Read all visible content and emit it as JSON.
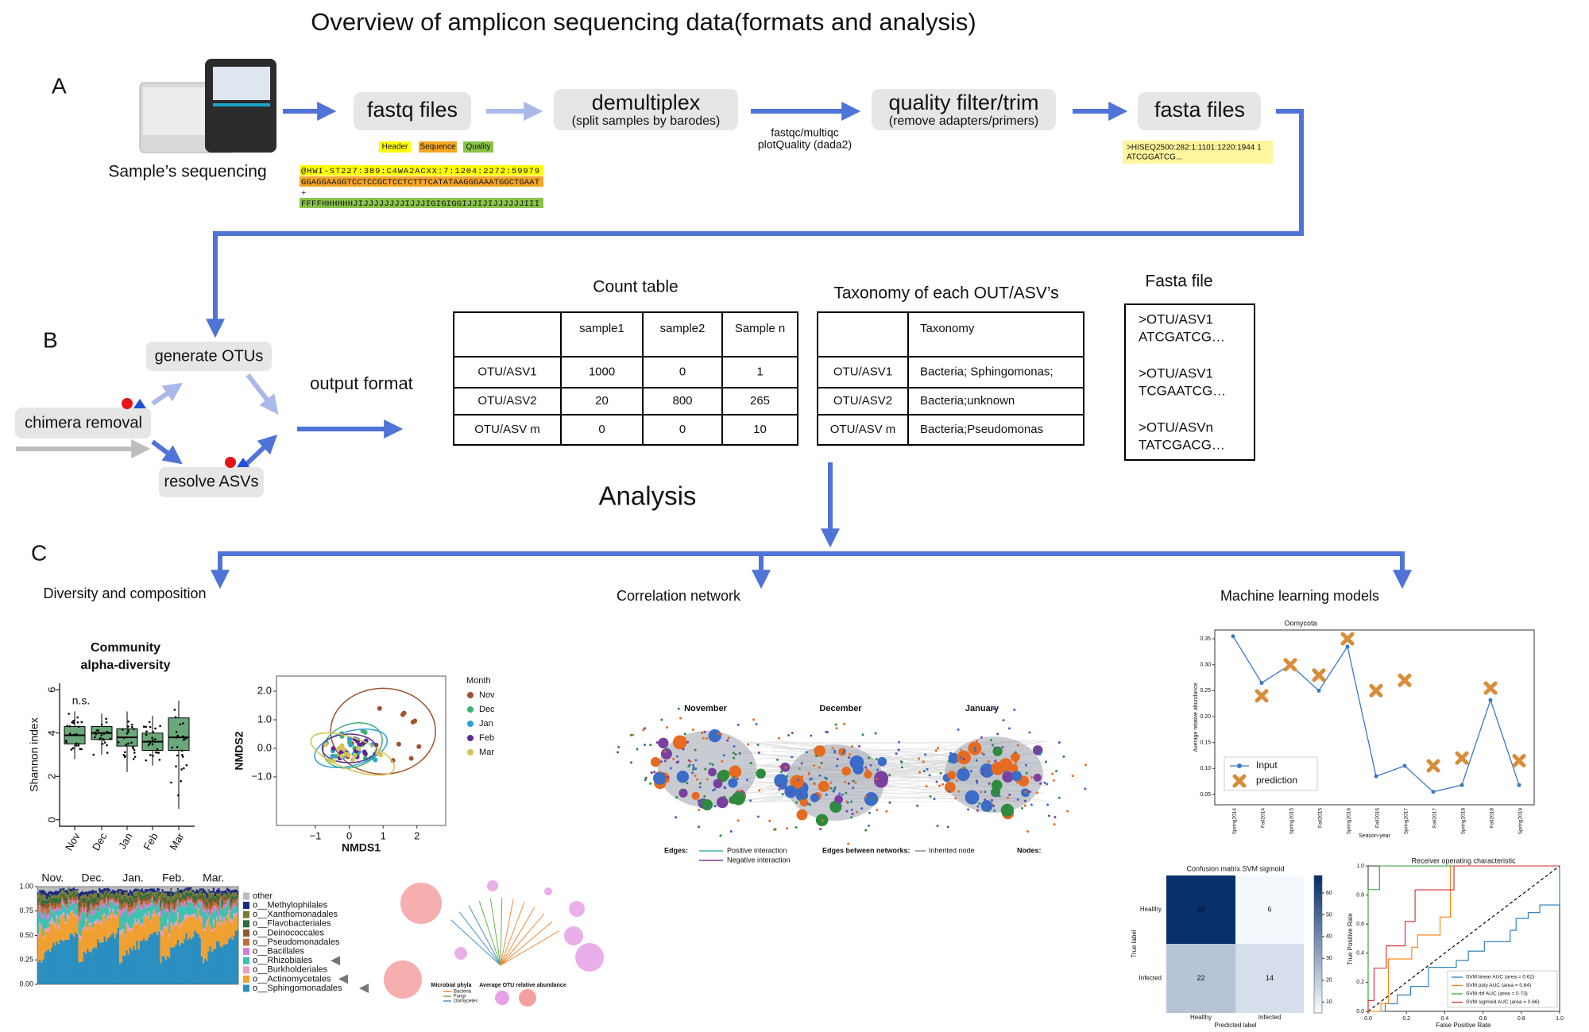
{
  "title": "Overview of amplicon sequencing data(formats and analysis)",
  "panel_a": {
    "label": "A",
    "instrument_caption": "Sample’s sequencing",
    "steps": [
      {
        "label": "fastq files"
      },
      {
        "label": "demultiplex",
        "sublabel": "(split samples by barodes)"
      },
      {
        "label": "quality filter/trim",
        "sublabel": "(remove adapters/primers)"
      },
      {
        "label": "fasta files"
      }
    ],
    "qc_note": [
      "fastqc/multiqc",
      "plotQuality (dada2)"
    ],
    "fastq_legend": [
      {
        "label": "Header",
        "color": "#ffff00"
      },
      {
        "label": "Sequence",
        "color": "#f5a623"
      },
      {
        "label": "Quality",
        "color": "#8bc34a"
      }
    ],
    "fastq_lines": [
      "@HWI-ST227:389:C4WA2ACXX:7:1204:2272:59979",
      "GGAGGAAGGTCCTCCGCTCCTCTTTCATATAAGGGAAATGGCTGAAT",
      "+",
      "FFFFHHHHHHJIJJJJJJJJIJJJIGIGIGGIJJIJIJJJJJJIII"
    ],
    "fasta_lines": [
      ">HISEQ2500:282:1:1101:1220:1944 1",
      "ATCGGATCG..."
    ]
  },
  "panel_b": {
    "label": "B",
    "generate": "generate OTUs",
    "chimera": "chimera removal",
    "resolve": "resolve ASVs",
    "output": "output format",
    "count_table": {
      "title": "Count table",
      "header": [
        "sample1",
        "sample2",
        "Sample n"
      ],
      "rows": [
        [
          "OTU/ASV1",
          1000,
          0,
          1
        ],
        [
          "OTU/ASV2",
          20,
          800,
          265
        ],
        [
          "OTU/ASV m",
          0,
          0,
          10
        ]
      ]
    },
    "taxonomy_table": {
      "title": "Taxonomy of each OUT/ASV’s",
      "header": "Taxonomy",
      "rows": [
        [
          "OTU/ASV1",
          "Bacteria; Sphingomonas;"
        ],
        [
          "OTU/ASV2",
          "Bacteria;unknown"
        ],
        [
          "OTU/ASV m",
          "Bacteria;Pseudomonas"
        ]
      ]
    },
    "fasta_file": {
      "title": "Fasta file",
      "entries": [
        [
          ">OTU/ASV1",
          "ATCGATCG…"
        ],
        [
          ">OTU/ASV1",
          "TCGAATCG…"
        ],
        [
          ">OTU/ASVn",
          "TATCGACG…"
        ]
      ]
    }
  },
  "analysis": "Analysis",
  "panel_c": {
    "label": "C",
    "diversity": {
      "title": "Diversity and composition",
      "alpha": {
        "title_lines": [
          "Community",
          "alpha-diversity"
        ],
        "ylabel": "Shannon index",
        "note": "n.s.",
        "ylim": [
          -0.3,
          6.3
        ],
        "yticks": [
          0,
          2,
          4,
          6
        ],
        "categories": [
          "Nov",
          "Dec",
          "Jan",
          "Feb",
          "Mar"
        ],
        "color": "#6aa87a",
        "boxes": [
          {
            "min": 2.8,
            "q1": 3.5,
            "median": 3.9,
            "q3": 4.3,
            "max": 5.0
          },
          {
            "min": 3.0,
            "q1": 3.7,
            "median": 4.0,
            "q3": 4.3,
            "max": 4.9
          },
          {
            "min": 2.2,
            "q1": 3.4,
            "median": 3.8,
            "q3": 4.2,
            "max": 5.0
          },
          {
            "min": 2.5,
            "q1": 3.2,
            "median": 3.6,
            "q3": 4.0,
            "max": 4.8
          },
          {
            "min": 0.5,
            "q1": 3.2,
            "median": 3.8,
            "q3": 4.7,
            "max": 5.5
          }
        ]
      },
      "nmds": {
        "xlabel": "NMDS1",
        "ylabel": "NMDS2",
        "xlim": [
          -2.15,
          2.85
        ],
        "ylim": [
          -2.7,
          2.53
        ],
        "xticks": [
          {
            "value": -1,
            "label": "−1"
          },
          0,
          1,
          2
        ],
        "yticks": [
          {
            "value": 2,
            "label": "2.0"
          },
          {
            "value": 1,
            "label": "1.0"
          },
          {
            "value": 0,
            "label": "0.0"
          },
          {
            "value": -1,
            "label": "−1.0"
          }
        ],
        "legend_title": "Month",
        "groups": [
          {
            "name": "Nov",
            "color": "#a0522d"
          },
          {
            "name": "Dec",
            "color": "#3cb371"
          },
          {
            "name": "Jan",
            "color": "#2e9fd8"
          },
          {
            "name": "Feb",
            "color": "#5b2c8f"
          },
          {
            "name": "Mar",
            "color": "#d4c35a"
          }
        ]
      },
      "composition": {
        "months": [
          "Nov.",
          "Dec.",
          "Jan.",
          "Feb.",
          "Mar."
        ],
        "ylim": [
          0,
          1
        ],
        "yticks": [
          {
            "value": 0,
            "label": "0.00"
          },
          {
            "value": 0.25,
            "label": "0.25"
          },
          {
            "value": 0.5,
            "label": "0.50"
          },
          {
            "value": 0.75,
            "label": "0.75"
          },
          {
            "value": 1,
            "label": "1.00"
          }
        ],
        "taxa": [
          {
            "name": "other",
            "color": "#bbbbbb"
          },
          {
            "name": "o__Methylophilales",
            "color": "#1b2a80"
          },
          {
            "name": "o__Xanthomonadales",
            "color": "#7a7a3a"
          },
          {
            "name": "o__Flavobacteriales",
            "color": "#2e6e3a"
          },
          {
            "name": "o__Deinococcales",
            "color": "#8b5a2b"
          },
          {
            "name": "o__Pseudomonadales",
            "color": "#c07040"
          },
          {
            "name": "o__Bacillales",
            "color": "#d080d0"
          },
          {
            "name": "o__Rhizobiales",
            "color": "#40c0b0"
          },
          {
            "name": "o__Burkholderiales",
            "color": "#e8a0c0"
          },
          {
            "name": "o__Actinomycetales",
            "color": "#f0a030"
          },
          {
            "name": "o__Sphingomonadales",
            "color": "#2a8fc0"
          }
        ]
      },
      "tree": {
        "legend_title": "Microbial phyla",
        "phyla": [
          {
            "name": "Bacteria",
            "color": "#f08c3c"
          },
          {
            "name": "Fungi",
            "color": "#6ab04c"
          },
          {
            "name": "Oomycetes",
            "color": "#4a90c8"
          }
        ],
        "size_title": "Average OTU relative abundance"
      }
    },
    "network": {
      "title": "Correlation network",
      "months": [
        "November",
        "December",
        "January"
      ],
      "edges_title": "Edges:",
      "edge_types": [
        {
          "name": "Positive interaction",
          "color": "#3bb3a8"
        },
        {
          "name": "Negative interaction",
          "color": "#7b3fa0"
        }
      ],
      "between_title": "Edges between networks:",
      "between_types": [
        {
          "name": "Inherited node",
          "color": "#888888"
        }
      ],
      "nodes_title": "Nodes:"
    },
    "ml": {
      "title": "Machine learning models",
      "line": {
        "title": "Oomycota",
        "xlabel": "Season-year",
        "ylabel": "Average relative abundance",
        "categories": [
          "Spring2014",
          "Fall2014",
          "Spring2015",
          "Fall2015",
          "Spring2016",
          "Fall2016",
          "Spring2017",
          "Fall2017",
          "Spring2018",
          "Fall2018",
          "Spring2019"
        ],
        "ylim": [
          0.03,
          0.367
        ],
        "yticks": [
          0.05,
          {
            "value": 0.1,
            "label": "0.10"
          },
          0.15,
          {
            "value": 0.2,
            "label": "0.20"
          },
          0.25,
          {
            "value": 0.3,
            "label": "0.30"
          },
          0.35
        ],
        "series": [
          {
            "name": "Input",
            "color": "#3a78c8",
            "values": [
              0.355,
              0.265,
              0.3,
              0.25,
              0.335,
              0.085,
              0.105,
              0.055,
              0.068,
              0.232,
              0.068
            ]
          },
          {
            "name": "prediction",
            "color": "#d98c3a",
            "values": [
              null,
              0.24,
              0.3,
              0.28,
              0.35,
              0.25,
              0.27,
              0.105,
              0.12,
              0.255,
              0.115
            ]
          }
        ]
      },
      "confusion": {
        "title": "Confusion matrix SVM sigmoid",
        "labels": [
          "Healthy",
          "Infected"
        ],
        "ylabel": "True label",
        "xlabel": "Predicted label",
        "values": [
          [
            68,
            6
          ],
          [
            22,
            14
          ]
        ],
        "clim": [
          5,
          68
        ],
        "cticks": [
          10,
          20,
          30,
          40,
          50,
          60
        ]
      },
      "roc": {
        "title": "Receiver operating characteristic",
        "xlabel": "False Positive Rate",
        "ylabel": "True Positive Rate",
        "xlim": [
          0,
          1
        ],
        "ylim": [
          0,
          1
        ],
        "xticks": [
          {
            "value": 0,
            "label": "0.0"
          },
          {
            "value": 0.2,
            "label": "0.2"
          },
          {
            "value": 0.4,
            "label": "0.4"
          },
          {
            "value": 0.6,
            "label": "0.6"
          },
          {
            "value": 0.8,
            "label": "0.8"
          },
          {
            "value": 1,
            "label": "1.0"
          }
        ],
        "yticks": [
          {
            "value": 0,
            "label": "0.0"
          },
          {
            "value": 0.2,
            "label": "0.2"
          },
          {
            "value": 0.4,
            "label": "0.4"
          },
          {
            "value": 0.6,
            "label": "0.6"
          },
          {
            "value": 0.8,
            "label": "0.8"
          },
          {
            "value": 1,
            "label": "1.0"
          }
        ],
        "series": [
          {
            "name": "SVM linear AUC (area = 0.62)",
            "color": "#1f77b4"
          },
          {
            "name": "SVM poly AUC (area = 0.64)",
            "color": "#ff7f0e"
          },
          {
            "name": "SVM rbf AUC (area = 0.73)",
            "color": "#2ca02c"
          },
          {
            "name": "SVM sigmoid AUC (area = 0.66)",
            "color": "#d62728"
          }
        ]
      }
    }
  }
}
